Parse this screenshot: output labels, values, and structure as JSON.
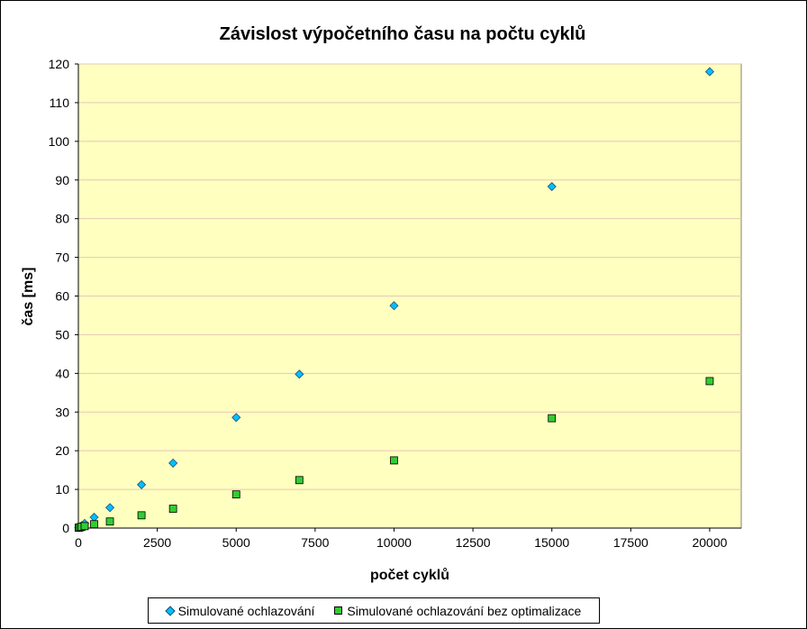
{
  "chart_data": {
    "type": "scatter",
    "title": "Závislost výpočetního času na počtu cyklů",
    "xlabel": "počet cyklů",
    "ylabel": "čas [ms]",
    "xlim": [
      0,
      21000
    ],
    "ylim": [
      0,
      120
    ],
    "x_ticks": [
      0,
      2500,
      5000,
      7500,
      10000,
      12500,
      15000,
      17500,
      20000
    ],
    "y_ticks": [
      0,
      10,
      20,
      30,
      40,
      50,
      60,
      70,
      80,
      90,
      100,
      110,
      120
    ],
    "grid": "horizontal",
    "legend": "bottom",
    "plot_background": "#ffffc0",
    "series": [
      {
        "name": "Simulované ochlazování",
        "marker": "diamond",
        "color": "#00c0ff",
        "x": [
          10,
          50,
          100,
          200,
          500,
          1000,
          2000,
          3000,
          5000,
          7000,
          10000,
          15000,
          20000
        ],
        "y": [
          0.1,
          0.3,
          0.6,
          1.2,
          2.8,
          5.3,
          11.2,
          16.8,
          28.6,
          39.8,
          57.5,
          88.3,
          118.0
        ]
      },
      {
        "name": "Simulované ochlazování bez optimalizace",
        "marker": "square",
        "color": "#33cc33",
        "x": [
          10,
          50,
          100,
          200,
          500,
          1000,
          2000,
          3000,
          5000,
          7000,
          10000,
          15000,
          20000
        ],
        "y": [
          0.1,
          0.2,
          0.3,
          0.5,
          1.0,
          1.7,
          3.3,
          5.0,
          8.7,
          12.4,
          17.5,
          28.4,
          38.0
        ]
      }
    ]
  }
}
